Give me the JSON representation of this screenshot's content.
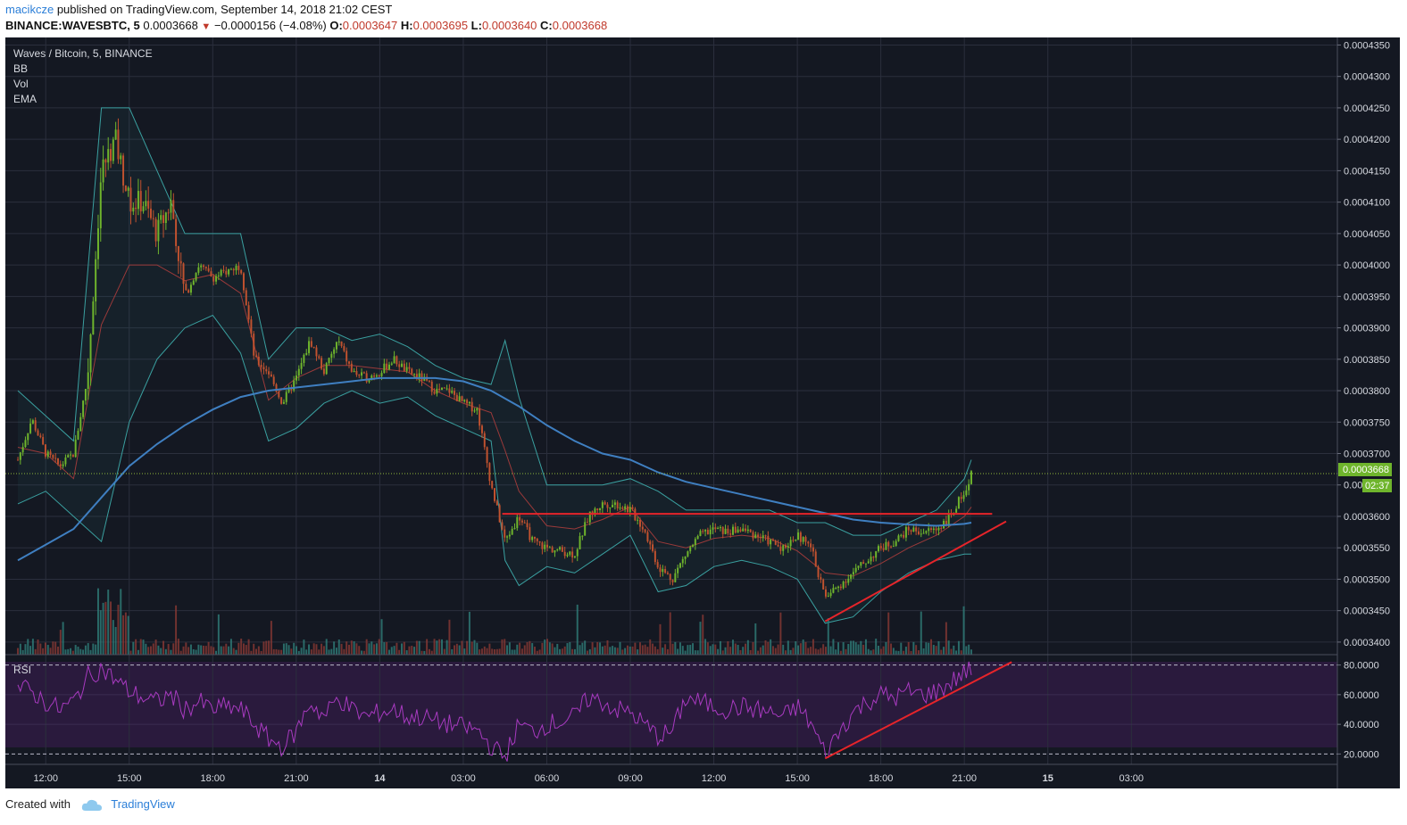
{
  "header": {
    "author": "macikcze",
    "published_text": "published on TradingView.com, September 14, 2018 21:02 CEST",
    "symbol": "BINANCE:WAVESBTC, 5",
    "last": "0.0003668",
    "change": "−0.0000156 (−4.08%)",
    "o_label": "O:",
    "o_value": "0.0003647",
    "h_label": "H:",
    "h_value": "0.0003695",
    "l_label": "L:",
    "l_value": "0.0003640",
    "c_label": "C:",
    "c_value": "0.0003668"
  },
  "legend": {
    "title": "Waves / Bitcoin, 5, BINANCE",
    "bb": "BB",
    "vol": "Vol",
    "ema": "EMA",
    "rsi": "RSI"
  },
  "price_tag": {
    "price": "0.0003668",
    "countdown": "02:37"
  },
  "footer": {
    "created_with": "Created with",
    "brand": "TradingView"
  },
  "colors": {
    "background": "#141822",
    "grid": "#2b2f3d",
    "up": "#6fb52c",
    "down": "#c1522f",
    "ema": "#3f7fc1",
    "bb_band": "#3aa0a0",
    "bb_basis": "#9b3a3a",
    "rsi": "#a83ac0",
    "rsi_band": "#2a1a3d",
    "trendline": "#e6242a",
    "price_tag": "#6fb52c"
  },
  "chart_data": {
    "type": "candlestick",
    "interval": "5m",
    "y_ticks": [
      "0.0004350",
      "0.0004300",
      "0.0004250",
      "0.0004200",
      "0.0004150",
      "0.0004100",
      "0.0004050",
      "0.0004000",
      "0.0003950",
      "0.0003900",
      "0.0003850",
      "0.0003800",
      "0.0003750",
      "0.0003700",
      "0.0003650",
      "0.0003600",
      "0.0003550",
      "0.0003500",
      "0.0003450",
      "0.0003400"
    ],
    "ylim": [
      0.000338,
      0.0004362
    ],
    "rsi_ticks": [
      "80.0000",
      "60.0000",
      "40.0000",
      "20.0000"
    ],
    "rsi_ylim": [
      13,
      87
    ],
    "x_ticks": [
      "12:00",
      "15:00",
      "18:00",
      "21:00",
      "14",
      "03:00",
      "06:00",
      "09:00",
      "12:00",
      "15:00",
      "18:00",
      "21:00",
      "15",
      "03:00"
    ],
    "price_path": [
      [
        11.0,
        0.000369
      ],
      [
        11.5,
        0.0003755
      ],
      [
        12.0,
        0.00037
      ],
      [
        12.5,
        0.000368
      ],
      [
        13.0,
        0.00037
      ],
      [
        13.5,
        0.000382
      ],
      [
        14.0,
        0.000415
      ],
      [
        14.5,
        0.00042
      ],
      [
        15.0,
        0.00041
      ],
      [
        15.5,
        0.00041
      ],
      [
        16.0,
        0.000405
      ],
      [
        16.5,
        0.00041
      ],
      [
        17.0,
        0.000395
      ],
      [
        17.5,
        0.0004
      ],
      [
        18.0,
        0.000398
      ],
      [
        18.5,
        0.000399
      ],
      [
        19.0,
        0.0004
      ],
      [
        19.5,
        0.000385
      ],
      [
        20.0,
        0.000383
      ],
      [
        20.5,
        0.000378
      ],
      [
        21.0,
        0.000382
      ],
      [
        21.5,
        0.000388
      ],
      [
        22.0,
        0.000383
      ],
      [
        22.5,
        0.000388
      ],
      [
        23.0,
        0.000383
      ],
      [
        23.5,
        0.000382
      ],
      [
        24.0,
        0.000383
      ],
      [
        24.5,
        0.000385
      ],
      [
        25.0,
        0.000383
      ],
      [
        25.5,
        0.000382
      ],
      [
        26.0,
        0.00038
      ],
      [
        26.5,
        0.00038
      ],
      [
        27.0,
        0.000378
      ],
      [
        27.5,
        0.000377
      ],
      [
        28.0,
        0.000365
      ],
      [
        28.5,
        0.000356
      ],
      [
        29.0,
        0.00036
      ],
      [
        29.5,
        0.000356
      ],
      [
        30.0,
        0.000355
      ],
      [
        30.5,
        0.0003545
      ],
      [
        31.0,
        0.000354
      ],
      [
        31.5,
        0.00036
      ],
      [
        32.0,
        0.000362
      ],
      [
        32.5,
        0.000362
      ],
      [
        33.0,
        0.000361
      ],
      [
        33.5,
        0.000358
      ],
      [
        34.0,
        0.000352
      ],
      [
        34.5,
        0.00035
      ],
      [
        35.0,
        0.000354
      ],
      [
        35.5,
        0.000357
      ],
      [
        36.0,
        0.000358
      ],
      [
        36.5,
        0.0003575
      ],
      [
        37.0,
        0.000358
      ],
      [
        37.5,
        0.000357
      ],
      [
        38.0,
        0.000356
      ],
      [
        38.5,
        0.000355
      ],
      [
        39.0,
        0.000357
      ],
      [
        39.5,
        0.000355
      ],
      [
        40.0,
        0.000347
      ],
      [
        40.5,
        0.000349
      ],
      [
        41.0,
        0.000351
      ],
      [
        41.5,
        0.000353
      ],
      [
        42.0,
        0.000355
      ],
      [
        42.5,
        0.000356
      ],
      [
        43.0,
        0.000358
      ],
      [
        43.5,
        0.0003575
      ],
      [
        44.0,
        0.000358
      ],
      [
        44.5,
        0.00036
      ],
      [
        45.0,
        0.000364
      ],
      [
        45.25,
        0.0003668
      ]
    ],
    "ema_path": [
      [
        11.0,
        0.000353
      ],
      [
        12.0,
        0.0003555
      ],
      [
        13.0,
        0.000358
      ],
      [
        14.0,
        0.000363
      ],
      [
        15.0,
        0.000368
      ],
      [
        16.0,
        0.0003715
      ],
      [
        17.0,
        0.0003745
      ],
      [
        18.0,
        0.000377
      ],
      [
        19.0,
        0.000379
      ],
      [
        20.0,
        0.00038
      ],
      [
        21.0,
        0.0003805
      ],
      [
        22.0,
        0.000381
      ],
      [
        23.0,
        0.0003815
      ],
      [
        24.0,
        0.000382
      ],
      [
        25.0,
        0.000382
      ],
      [
        26.0,
        0.000382
      ],
      [
        27.0,
        0.0003815
      ],
      [
        28.0,
        0.00038
      ],
      [
        29.0,
        0.0003775
      ],
      [
        30.0,
        0.0003745
      ],
      [
        31.0,
        0.000372
      ],
      [
        32.0,
        0.00037
      ],
      [
        33.0,
        0.000369
      ],
      [
        34.0,
        0.000367
      ],
      [
        35.0,
        0.0003655
      ],
      [
        36.0,
        0.0003645
      ],
      [
        37.0,
        0.0003635
      ],
      [
        38.0,
        0.0003625
      ],
      [
        39.0,
        0.0003615
      ],
      [
        40.0,
        0.0003605
      ],
      [
        41.0,
        0.0003595
      ],
      [
        42.0,
        0.000359
      ],
      [
        43.0,
        0.0003587
      ],
      [
        44.0,
        0.0003585
      ],
      [
        45.0,
        0.0003588
      ],
      [
        45.25,
        0.000359
      ]
    ],
    "bb_upper": [
      [
        11.0,
        0.00038
      ],
      [
        12.0,
        0.000376
      ],
      [
        13.0,
        0.000372
      ],
      [
        14.0,
        0.000425
      ],
      [
        15.0,
        0.000425
      ],
      [
        16.0,
        0.000415
      ],
      [
        17.0,
        0.000405
      ],
      [
        18.0,
        0.000405
      ],
      [
        19.0,
        0.000405
      ],
      [
        20.0,
        0.000385
      ],
      [
        21.0,
        0.00039
      ],
      [
        22.0,
        0.00039
      ],
      [
        23.0,
        0.000388
      ],
      [
        24.0,
        0.000389
      ],
      [
        25.0,
        0.000387
      ],
      [
        26.0,
        0.000384
      ],
      [
        27.0,
        0.000382
      ],
      [
        28.0,
        0.000381
      ],
      [
        28.5,
        0.000388
      ],
      [
        29.0,
        0.000379
      ],
      [
        30.0,
        0.000365
      ],
      [
        31.0,
        0.000365
      ],
      [
        32.0,
        0.000365
      ],
      [
        33.0,
        0.000366
      ],
      [
        34.0,
        0.000364
      ],
      [
        35.0,
        0.000361
      ],
      [
        36.0,
        0.000361
      ],
      [
        37.0,
        0.000361
      ],
      [
        38.0,
        0.000361
      ],
      [
        39.0,
        0.000359
      ],
      [
        40.0,
        0.000359
      ],
      [
        41.0,
        0.000357
      ],
      [
        42.0,
        0.000357
      ],
      [
        43.0,
        0.000359
      ],
      [
        44.0,
        0.000361
      ],
      [
        45.0,
        0.000366
      ],
      [
        45.25,
        0.000369
      ]
    ],
    "bb_lower": [
      [
        11.0,
        0.000362
      ],
      [
        12.0,
        0.000364
      ],
      [
        13.0,
        0.00036
      ],
      [
        14.0,
        0.000356
      ],
      [
        15.0,
        0.000375
      ],
      [
        16.0,
        0.000385
      ],
      [
        17.0,
        0.00039
      ],
      [
        18.0,
        0.000392
      ],
      [
        19.0,
        0.000386
      ],
      [
        20.0,
        0.000372
      ],
      [
        21.0,
        0.000374
      ],
      [
        22.0,
        0.000378
      ],
      [
        23.0,
        0.00038
      ],
      [
        24.0,
        0.000378
      ],
      [
        25.0,
        0.000379
      ],
      [
        26.0,
        0.000376
      ],
      [
        27.0,
        0.000374
      ],
      [
        28.0,
        0.000372
      ],
      [
        28.5,
        0.000353
      ],
      [
        29.0,
        0.000349
      ],
      [
        30.0,
        0.000352
      ],
      [
        31.0,
        0.000351
      ],
      [
        32.0,
        0.000354
      ],
      [
        33.0,
        0.000357
      ],
      [
        34.0,
        0.000348
      ],
      [
        35.0,
        0.000349
      ],
      [
        36.0,
        0.000352
      ],
      [
        37.0,
        0.000353
      ],
      [
        38.0,
        0.000352
      ],
      [
        39.0,
        0.00035
      ],
      [
        40.0,
        0.000343
      ],
      [
        41.0,
        0.000344
      ],
      [
        42.0,
        0.000348
      ],
      [
        43.0,
        0.000351
      ],
      [
        44.0,
        0.000353
      ],
      [
        45.0,
        0.000354
      ],
      [
        45.25,
        0.000354
      ]
    ],
    "rsi_path": [
      [
        11.0,
        65
      ],
      [
        11.5,
        62
      ],
      [
        12.0,
        55
      ],
      [
        12.5,
        50
      ],
      [
        13.0,
        55
      ],
      [
        13.5,
        72
      ],
      [
        14.0,
        78
      ],
      [
        14.5,
        70
      ],
      [
        15.0,
        62
      ],
      [
        15.5,
        58
      ],
      [
        16.0,
        55
      ],
      [
        16.5,
        60
      ],
      [
        17.0,
        50
      ],
      [
        17.5,
        55
      ],
      [
        18.0,
        50
      ],
      [
        18.5,
        52
      ],
      [
        19.0,
        50
      ],
      [
        19.5,
        40
      ],
      [
        20.0,
        30
      ],
      [
        20.5,
        25
      ],
      [
        21.0,
        35
      ],
      [
        21.5,
        55
      ],
      [
        22.0,
        45
      ],
      [
        22.5,
        58
      ],
      [
        23.0,
        50
      ],
      [
        23.5,
        45
      ],
      [
        24.0,
        48
      ],
      [
        24.5,
        50
      ],
      [
        25.0,
        45
      ],
      [
        25.5,
        45
      ],
      [
        26.0,
        42
      ],
      [
        26.5,
        40
      ],
      [
        27.0,
        38
      ],
      [
        27.5,
        36
      ],
      [
        28.0,
        25
      ],
      [
        28.5,
        18
      ],
      [
        29.0,
        40
      ],
      [
        29.5,
        35
      ],
      [
        30.0,
        40
      ],
      [
        30.5,
        42
      ],
      [
        31.0,
        45
      ],
      [
        31.5,
        58
      ],
      [
        32.0,
        55
      ],
      [
        32.5,
        50
      ],
      [
        33.0,
        48
      ],
      [
        33.5,
        40
      ],
      [
        34.0,
        32
      ],
      [
        34.5,
        35
      ],
      [
        35.0,
        58
      ],
      [
        35.5,
        55
      ],
      [
        36.0,
        52
      ],
      [
        36.5,
        50
      ],
      [
        37.0,
        52
      ],
      [
        37.5,
        50
      ],
      [
        38.0,
        48
      ],
      [
        38.5,
        45
      ],
      [
        39.0,
        52
      ],
      [
        39.5,
        40
      ],
      [
        40.0,
        20
      ],
      [
        40.5,
        35
      ],
      [
        41.0,
        48
      ],
      [
        41.5,
        55
      ],
      [
        42.0,
        60
      ],
      [
        42.5,
        58
      ],
      [
        43.0,
        62
      ],
      [
        43.5,
        60
      ],
      [
        44.0,
        62
      ],
      [
        44.5,
        68
      ],
      [
        45.0,
        75
      ],
      [
        45.25,
        78
      ]
    ],
    "resistance_line": {
      "from": [
        28.4,
        0.0003604
      ],
      "to": [
        46.0,
        0.0003604
      ]
    },
    "support_trendline": {
      "from": [
        40.0,
        0.0003433
      ],
      "to": [
        46.5,
        0.0003592
      ]
    },
    "rsi_trendline": {
      "from": [
        40.0,
        17
      ],
      "to": [
        46.7,
        82
      ]
    },
    "last_price": 0.0003668
  }
}
